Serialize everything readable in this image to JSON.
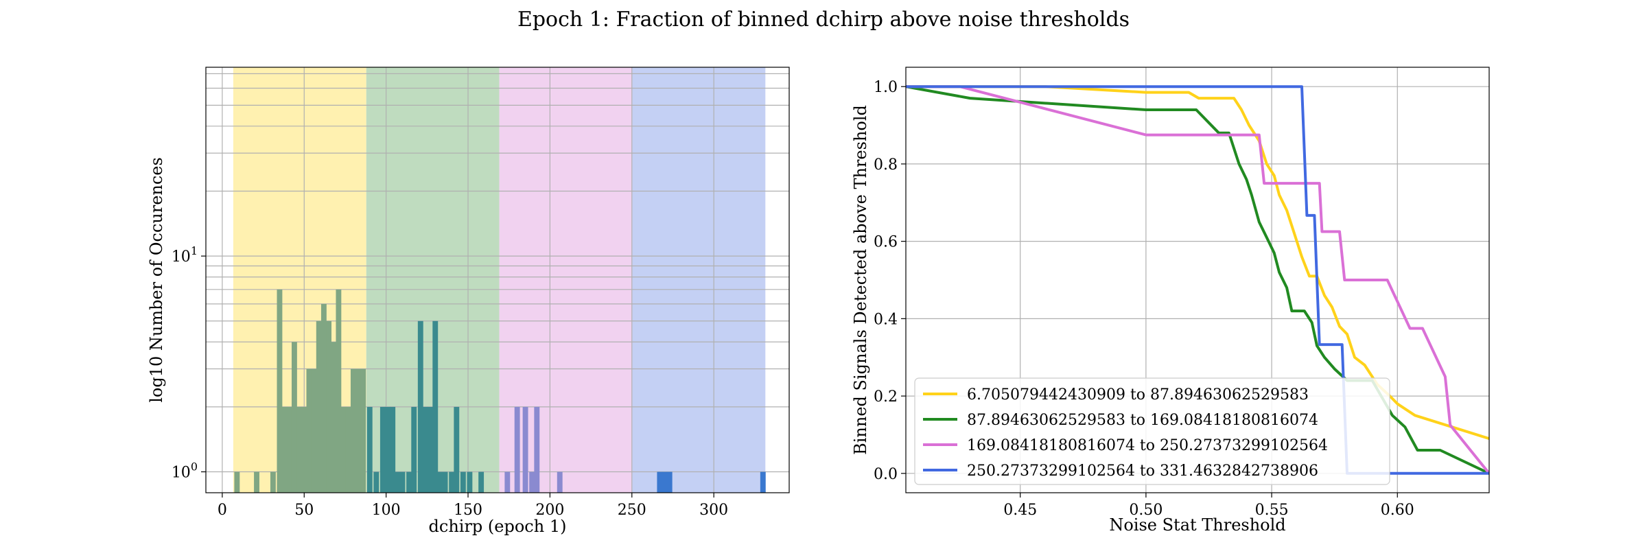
{
  "figure": {
    "suptitle": "Epoch 1: Fraction of binned dchirp above noise thresholds"
  },
  "chart_data": [
    {
      "type": "bar",
      "subtype": "histogram",
      "xlabel": "dchirp (epoch 1)",
      "ylabel": "log10 Number of Occurences",
      "xlim": [
        -10,
        346
      ],
      "ylim": [
        0.8,
        75
      ],
      "yscale": "log",
      "grid": true,
      "xticks": [
        0,
        50,
        100,
        150,
        200,
        250,
        300
      ],
      "yticks": [
        {
          "value": 1,
          "base": "10",
          "exp": "0"
        },
        {
          "value": 10,
          "base": "10",
          "exp": "1"
        }
      ],
      "shaded_bands": [
        {
          "x0": 6.705,
          "x1": 87.895,
          "color": "#fff1b0"
        },
        {
          "x0": 87.895,
          "x1": 169.084,
          "color": "#bfdcbf"
        },
        {
          "x0": 169.084,
          "x1": 250.274,
          "color": "#f1d2f0"
        },
        {
          "x0": 250.274,
          "x1": 331.463,
          "color": "#c4d0f4"
        }
      ],
      "bin_width": 3.3,
      "bins": [
        {
          "x": 9,
          "count": 1
        },
        {
          "x": 21,
          "count": 1
        },
        {
          "x": 31,
          "count": 1
        },
        {
          "x": 35,
          "count": 7
        },
        {
          "x": 38,
          "count": 2
        },
        {
          "x": 41,
          "count": 2
        },
        {
          "x": 44,
          "count": 4
        },
        {
          "x": 47,
          "count": 2
        },
        {
          "x": 50,
          "count": 2
        },
        {
          "x": 53,
          "count": 3
        },
        {
          "x": 56,
          "count": 3
        },
        {
          "x": 59,
          "count": 5
        },
        {
          "x": 62,
          "count": 6
        },
        {
          "x": 65,
          "count": 5
        },
        {
          "x": 68,
          "count": 4
        },
        {
          "x": 71,
          "count": 7
        },
        {
          "x": 74,
          "count": 2
        },
        {
          "x": 77,
          "count": 2
        },
        {
          "x": 80,
          "count": 3
        },
        {
          "x": 83,
          "count": 3
        },
        {
          "x": 86,
          "count": 3
        },
        {
          "x": 90,
          "count": 2
        },
        {
          "x": 94,
          "count": 1
        },
        {
          "x": 98,
          "count": 2
        },
        {
          "x": 101,
          "count": 2
        },
        {
          "x": 104,
          "count": 2
        },
        {
          "x": 107,
          "count": 1
        },
        {
          "x": 110,
          "count": 1
        },
        {
          "x": 114,
          "count": 1
        },
        {
          "x": 117,
          "count": 2
        },
        {
          "x": 121,
          "count": 5
        },
        {
          "x": 124,
          "count": 2
        },
        {
          "x": 127,
          "count": 2
        },
        {
          "x": 130,
          "count": 5
        },
        {
          "x": 133,
          "count": 1
        },
        {
          "x": 136,
          "count": 1
        },
        {
          "x": 140,
          "count": 1
        },
        {
          "x": 143,
          "count": 2
        },
        {
          "x": 147,
          "count": 1
        },
        {
          "x": 151,
          "count": 1
        },
        {
          "x": 158,
          "count": 1
        },
        {
          "x": 174,
          "count": 1
        },
        {
          "x": 180,
          "count": 2
        },
        {
          "x": 185,
          "count": 2
        },
        {
          "x": 189,
          "count": 1
        },
        {
          "x": 192,
          "count": 2
        },
        {
          "x": 206,
          "count": 1
        },
        {
          "x": 267,
          "count": 1
        },
        {
          "x": 270,
          "count": 1
        },
        {
          "x": 273,
          "count": 1
        },
        {
          "x": 330,
          "count": 1
        }
      ]
    },
    {
      "type": "line",
      "xlabel": "Noise Stat Threshold",
      "ylabel": "Binned Signals Detected above Threshold",
      "xlim": [
        0.4045,
        0.6365
      ],
      "ylim": [
        -0.05,
        1.05
      ],
      "grid": true,
      "xticks": [
        "0.45",
        "0.50",
        "0.55",
        "0.60"
      ],
      "yticks": [
        "0.0",
        "0.2",
        "0.4",
        "0.6",
        "0.8",
        "1.0"
      ],
      "legend": "lower-left",
      "series": [
        {
          "name": "6.705079442430909 to 87.89463062529583",
          "color": "#ffd21a",
          "points": [
            [
              0.4045,
              1.0
            ],
            [
              0.46,
              1.0
            ],
            [
              0.5,
              0.985
            ],
            [
              0.517,
              0.985
            ],
            [
              0.521,
              0.97
            ],
            [
              0.535,
              0.97
            ],
            [
              0.538,
              0.94
            ],
            [
              0.541,
              0.9
            ],
            [
              0.545,
              0.86
            ],
            [
              0.548,
              0.8
            ],
            [
              0.551,
              0.77
            ],
            [
              0.553,
              0.72
            ],
            [
              0.556,
              0.68
            ],
            [
              0.559,
              0.62
            ],
            [
              0.562,
              0.56
            ],
            [
              0.565,
              0.51
            ],
            [
              0.568,
              0.51
            ],
            [
              0.571,
              0.46
            ],
            [
              0.574,
              0.43
            ],
            [
              0.577,
              0.38
            ],
            [
              0.58,
              0.36
            ],
            [
              0.583,
              0.3
            ],
            [
              0.587,
              0.28
            ],
            [
              0.592,
              0.23
            ],
            [
              0.597,
              0.2
            ],
            [
              0.6,
              0.18
            ],
            [
              0.607,
              0.15
            ],
            [
              0.6365,
              0.09
            ]
          ]
        },
        {
          "name": "87.89463062529583 to 169.08418180816074",
          "color": "#218a21",
          "points": [
            [
              0.4045,
              1.0
            ],
            [
              0.43,
              0.97
            ],
            [
              0.5,
              0.94
            ],
            [
              0.52,
              0.94
            ],
            [
              0.529,
              0.88
            ],
            [
              0.533,
              0.88
            ],
            [
              0.537,
              0.8
            ],
            [
              0.54,
              0.76
            ],
            [
              0.542,
              0.72
            ],
            [
              0.545,
              0.65
            ],
            [
              0.548,
              0.61
            ],
            [
              0.551,
              0.57
            ],
            [
              0.553,
              0.52
            ],
            [
              0.556,
              0.48
            ],
            [
              0.558,
              0.42
            ],
            [
              0.563,
              0.42
            ],
            [
              0.566,
              0.39
            ],
            [
              0.568,
              0.33
            ],
            [
              0.571,
              0.3
            ],
            [
              0.575,
              0.27
            ],
            [
              0.58,
              0.24
            ],
            [
              0.59,
              0.24
            ],
            [
              0.598,
              0.15
            ],
            [
              0.603,
              0.12
            ],
            [
              0.608,
              0.06
            ],
            [
              0.617,
              0.06
            ],
            [
              0.6365,
              0.0
            ]
          ]
        },
        {
          "name": "169.08418180816074 to 250.27373299102564",
          "color": "#da70d6",
          "points": [
            [
              0.4045,
              1.0
            ],
            [
              0.426,
              1.0
            ],
            [
              0.5,
              0.875
            ],
            [
              0.545,
              0.875
            ],
            [
              0.547,
              0.75
            ],
            [
              0.569,
              0.75
            ],
            [
              0.57,
              0.625
            ],
            [
              0.577,
              0.625
            ],
            [
              0.579,
              0.5
            ],
            [
              0.596,
              0.5
            ],
            [
              0.605,
              0.375
            ],
            [
              0.61,
              0.375
            ],
            [
              0.619,
              0.25
            ],
            [
              0.621,
              0.125
            ],
            [
              0.6365,
              0.0
            ]
          ]
        },
        {
          "name": "250.27373299102564 to 331.4632842738906",
          "color": "#4169e1",
          "points": [
            [
              0.4045,
              1.0
            ],
            [
              0.562,
              1.0
            ],
            [
              0.564,
              0.667
            ],
            [
              0.567,
              0.667
            ],
            [
              0.569,
              0.333
            ],
            [
              0.578,
              0.333
            ],
            [
              0.58,
              0.0
            ],
            [
              0.6365,
              0.0
            ]
          ]
        }
      ]
    }
  ]
}
